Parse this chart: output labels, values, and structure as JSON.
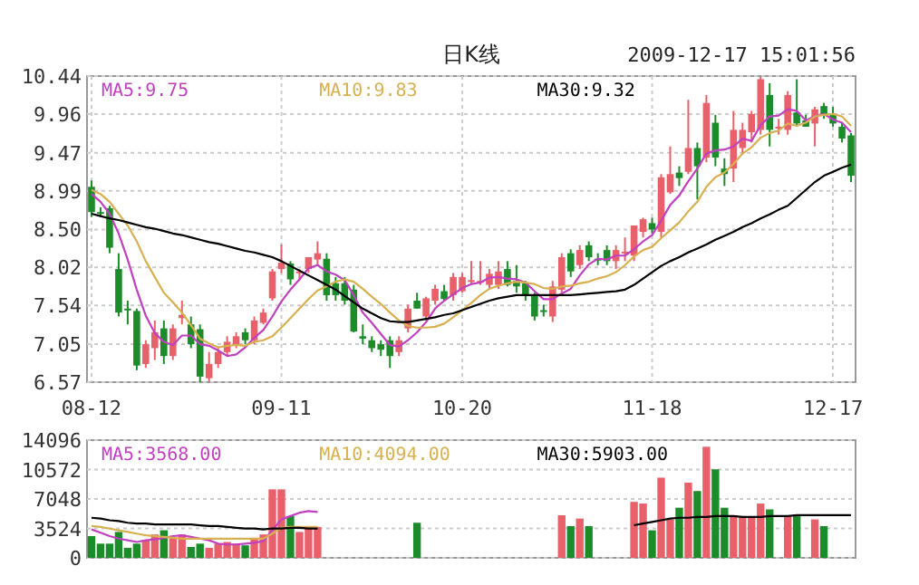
{
  "chart_data": [
    {
      "type": "candlestick",
      "title": "日K线",
      "annotations": [
        "2009-12-17 15:01:56"
      ],
      "categories": [
        "08-12",
        null,
        null,
        null,
        null,
        null,
        null,
        null,
        null,
        null,
        null,
        null,
        null,
        null,
        null,
        null,
        null,
        null,
        null,
        null,
        null,
        "09-11",
        null,
        null,
        null,
        null,
        null,
        null,
        null,
        null,
        null,
        null,
        null,
        null,
        null,
        null,
        null,
        null,
        null,
        null,
        null,
        "10-20",
        null,
        null,
        null,
        null,
        null,
        null,
        null,
        null,
        null,
        null,
        null,
        null,
        null,
        null,
        null,
        null,
        null,
        null,
        null,
        null,
        "11-18",
        null,
        null,
        null,
        null,
        null,
        null,
        null,
        null,
        null,
        null,
        null,
        null,
        null,
        null,
        null,
        null,
        null,
        null,
        null,
        "12-17",
        null,
        null
      ],
      "ohlc": [
        [
          9.04,
          9.12,
          8.66,
          8.72
        ],
        [
          8.72,
          8.78,
          8.66,
          8.7
        ],
        [
          8.77,
          8.8,
          8.2,
          8.27
        ],
        [
          8.0,
          8.2,
          7.4,
          7.45
        ],
        [
          7.5,
          7.6,
          7.3,
          7.48
        ],
        [
          7.47,
          7.5,
          6.72,
          6.78
        ],
        [
          6.8,
          7.1,
          6.75,
          7.05
        ],
        [
          7.0,
          7.35,
          6.85,
          7.2
        ],
        [
          7.25,
          7.35,
          6.8,
          6.9
        ],
        [
          6.9,
          7.3,
          6.85,
          7.25
        ],
        [
          7.38,
          7.6,
          7.3,
          7.42
        ],
        [
          7.3,
          7.4,
          7.0,
          7.05
        ],
        [
          7.24,
          7.3,
          6.57,
          6.64
        ],
        [
          6.62,
          6.95,
          6.58,
          6.8
        ],
        [
          6.8,
          7.0,
          6.75,
          6.95
        ],
        [
          6.95,
          7.15,
          6.9,
          7.08
        ],
        [
          7.05,
          7.2,
          7.0,
          7.15
        ],
        [
          7.2,
          7.25,
          7.05,
          7.1
        ],
        [
          7.1,
          7.4,
          7.05,
          7.35
        ],
        [
          7.32,
          7.5,
          7.3,
          7.45
        ],
        [
          7.63,
          8.0,
          7.6,
          7.97
        ],
        [
          8.0,
          8.31,
          7.95,
          8.08
        ],
        [
          8.07,
          8.1,
          7.8,
          7.87
        ],
        [
          7.95,
          8.0,
          7.85,
          7.97
        ],
        [
          8.0,
          8.15,
          7.95,
          8.15
        ],
        [
          8.12,
          8.35,
          8.05,
          8.2
        ],
        [
          8.13,
          8.2,
          7.6,
          7.67
        ],
        [
          7.82,
          7.9,
          7.6,
          7.67
        ],
        [
          7.82,
          7.9,
          7.55,
          7.6
        ],
        [
          7.74,
          7.8,
          7.2,
          7.21
        ],
        [
          7.15,
          7.3,
          7.05,
          7.12
        ],
        [
          7.1,
          7.15,
          6.95,
          7.0
        ],
        [
          7.05,
          7.1,
          6.9,
          6.98
        ],
        [
          7.1,
          7.15,
          6.75,
          6.9
        ],
        [
          6.95,
          7.15,
          6.9,
          7.1
        ],
        [
          7.25,
          7.55,
          7.2,
          7.5
        ],
        [
          7.6,
          7.7,
          7.5,
          7.5
        ],
        [
          7.4,
          7.65,
          7.35,
          7.63
        ],
        [
          7.6,
          7.8,
          7.55,
          7.75
        ],
        [
          7.72,
          7.8,
          7.6,
          7.62
        ],
        [
          7.67,
          7.95,
          7.6,
          7.9
        ],
        [
          7.72,
          7.95,
          7.7,
          7.9
        ],
        [
          7.84,
          8.1,
          7.8,
          7.86
        ],
        [
          7.85,
          8.1,
          7.8,
          7.85
        ],
        [
          7.8,
          8.0,
          7.75,
          7.94
        ],
        [
          7.8,
          8.1,
          7.75,
          7.97
        ],
        [
          8.0,
          8.1,
          7.78,
          7.8
        ],
        [
          7.85,
          8.05,
          7.7,
          7.78
        ],
        [
          7.82,
          7.85,
          7.6,
          7.67
        ],
        [
          7.67,
          7.7,
          7.35,
          7.4
        ],
        [
          7.48,
          7.55,
          7.4,
          7.47
        ],
        [
          7.4,
          7.85,
          7.33,
          7.78
        ],
        [
          7.74,
          8.2,
          7.7,
          8.15
        ],
        [
          8.2,
          8.25,
          7.9,
          7.97
        ],
        [
          8.05,
          8.3,
          8.0,
          8.24
        ],
        [
          8.3,
          8.35,
          8.1,
          8.15
        ],
        [
          8.13,
          8.2,
          8.05,
          8.12
        ],
        [
          8.24,
          8.3,
          8.05,
          8.1
        ],
        [
          8.1,
          8.3,
          8.0,
          8.24
        ],
        [
          8.2,
          8.4,
          8.1,
          8.22
        ],
        [
          8.17,
          8.55,
          8.1,
          8.55
        ],
        [
          8.47,
          8.65,
          8.4,
          8.63
        ],
        [
          8.58,
          8.65,
          8.45,
          8.5
        ],
        [
          8.47,
          9.2,
          8.4,
          9.16
        ],
        [
          8.97,
          9.55,
          8.95,
          9.2
        ],
        [
          9.22,
          9.3,
          9.05,
          9.15
        ],
        [
          9.23,
          10.14,
          9.2,
          9.53
        ],
        [
          9.53,
          9.6,
          8.88,
          9.3
        ],
        [
          9.41,
          10.2,
          9.35,
          10.1
        ],
        [
          9.85,
          9.95,
          9.3,
          9.41
        ],
        [
          9.27,
          9.4,
          9.05,
          9.2
        ],
        [
          9.27,
          10.0,
          9.1,
          9.76
        ],
        [
          9.53,
          9.85,
          9.45,
          9.76
        ],
        [
          9.73,
          10.0,
          9.6,
          9.96
        ],
        [
          9.76,
          10.44,
          9.7,
          10.4
        ],
        [
          10.2,
          10.35,
          9.55,
          9.76
        ],
        [
          9.78,
          9.9,
          9.7,
          9.8
        ],
        [
          9.76,
          10.25,
          9.7,
          10.2
        ],
        [
          9.98,
          10.4,
          9.8,
          9.84
        ],
        [
          9.88,
          9.95,
          9.8,
          9.8
        ],
        [
          9.84,
          10.05,
          9.55,
          10.02
        ],
        [
          10.06,
          10.1,
          9.9,
          9.96
        ],
        [
          9.96,
          10.05,
          9.8,
          9.84
        ],
        [
          9.8,
          9.85,
          9.6,
          9.65
        ],
        [
          9.69,
          9.72,
          9.1,
          9.18
        ]
      ],
      "colors": [
        "#1c8c2a",
        "#1c8c2a",
        "#1c8c2a",
        "#1c8c2a",
        "#1c8c2a",
        "#1c8c2a",
        "#e8606a",
        "#e8606a",
        "#1c8c2a",
        "#e8606a",
        "#e8606a",
        "#1c8c2a",
        "#1c8c2a",
        "#e8606a",
        "#e8606a",
        "#e8606a",
        "#e8606a",
        "#1c8c2a",
        "#e8606a",
        "#e8606a",
        "#e8606a",
        "#e8606a",
        "#1c8c2a",
        "#e8606a",
        "#e8606a",
        "#e8606a",
        "#1c8c2a",
        "#1c8c2a",
        "#1c8c2a",
        "#1c8c2a",
        "#1c8c2a",
        "#1c8c2a",
        "#1c8c2a",
        "#1c8c2a",
        "#e8606a",
        "#e8606a",
        "#1c8c2a",
        "#e8606a",
        "#e8606a",
        "#1c8c2a",
        "#e8606a",
        "#e8606a",
        "#e8606a",
        "#e8606a",
        "#e8606a",
        "#e8606a",
        "#1c8c2a",
        "#1c8c2a",
        "#1c8c2a",
        "#1c8c2a",
        "#1c8c2a",
        "#e8606a",
        "#e8606a",
        "#1c8c2a",
        "#e8606a",
        "#1c8c2a",
        "#1c8c2a",
        "#1c8c2a",
        "#e8606a",
        "#e8606a",
        "#e8606a",
        "#e8606a",
        "#1c8c2a",
        "#e8606a",
        "#e8606a",
        "#1c8c2a",
        "#e8606a",
        "#1c8c2a",
        "#e8606a",
        "#1c8c2a",
        "#1c8c2a",
        "#e8606a",
        "#e8606a",
        "#e8606a",
        "#e8606a",
        "#1c8c2a",
        "#e8606a",
        "#e8606a",
        "#1c8c2a",
        "#1c8c2a",
        "#e8606a",
        "#1c8c2a",
        "#1c8c2a",
        "#1c8c2a",
        "#1c8c2a"
      ],
      "series": [
        {
          "name": "MA5:9.75",
          "type": "line",
          "color": "#c040c0",
          "values": [
            8.95,
            8.85,
            8.7,
            8.45,
            8.12,
            7.74,
            7.41,
            7.19,
            7.08,
            7.04,
            7.16,
            7.16,
            7.05,
            7.03,
            6.97,
            6.9,
            6.92,
            7.01,
            7.13,
            7.23,
            7.4,
            7.59,
            7.74,
            7.87,
            8.01,
            8.05,
            7.97,
            7.93,
            7.86,
            7.67,
            7.45,
            7.32,
            7.18,
            7.04,
            7.02,
            7.1,
            7.2,
            7.33,
            7.5,
            7.6,
            7.68,
            7.76,
            7.81,
            7.83,
            7.89,
            7.9,
            7.88,
            7.87,
            7.83,
            7.72,
            7.62,
            7.62,
            7.69,
            7.75,
            7.92,
            8.06,
            8.13,
            8.12,
            8.17,
            8.17,
            8.25,
            8.35,
            8.43,
            8.61,
            8.81,
            8.93,
            9.11,
            9.27,
            9.46,
            9.5,
            9.51,
            9.55,
            9.65,
            9.62,
            9.82,
            9.93,
            9.94,
            10.02,
            10.0,
            9.88,
            9.93,
            9.96,
            9.89,
            9.85,
            9.73
          ]
        },
        {
          "name": "MA10:9.83",
          "type": "line",
          "color": "#d8b050",
          "values": [
            9.0,
            8.95,
            8.85,
            8.7,
            8.55,
            8.35,
            8.1,
            7.9,
            7.7,
            7.58,
            7.45,
            7.29,
            7.12,
            7.06,
            7.01,
            7.03,
            7.04,
            7.03,
            7.08,
            7.1,
            7.15,
            7.26,
            7.38,
            7.5,
            7.62,
            7.73,
            7.78,
            7.84,
            7.87,
            7.84,
            7.75,
            7.65,
            7.56,
            7.45,
            7.35,
            7.28,
            7.26,
            7.26,
            7.27,
            7.31,
            7.39,
            7.48,
            7.57,
            7.67,
            7.75,
            7.79,
            7.82,
            7.84,
            7.83,
            7.81,
            7.76,
            7.75,
            7.78,
            7.79,
            7.82,
            7.84,
            7.88,
            7.91,
            7.96,
            8.05,
            8.16,
            8.24,
            8.28,
            8.39,
            8.49,
            8.59,
            8.73,
            8.85,
            9.04,
            9.16,
            9.22,
            9.33,
            9.46,
            9.54,
            9.66,
            9.72,
            9.75,
            9.84,
            9.81,
            9.85,
            9.93,
            9.95,
            9.96,
            9.93,
            9.81
          ]
        },
        {
          "name": "MA30:9.32",
          "type": "line",
          "color": "#000000",
          "values": [
            8.7,
            8.67,
            8.64,
            8.62,
            8.59,
            8.56,
            8.53,
            8.51,
            8.48,
            8.45,
            8.43,
            8.4,
            8.37,
            8.34,
            8.32,
            8.29,
            8.26,
            8.23,
            8.21,
            8.18,
            8.15,
            8.1,
            8.04,
            7.98,
            7.92,
            7.86,
            7.8,
            7.74,
            7.66,
            7.58,
            7.5,
            7.44,
            7.38,
            7.34,
            7.33,
            7.33,
            7.35,
            7.37,
            7.39,
            7.42,
            7.44,
            7.48,
            7.52,
            7.56,
            7.6,
            7.63,
            7.65,
            7.67,
            7.67,
            7.67,
            7.67,
            7.67,
            7.67,
            7.67,
            7.68,
            7.69,
            7.7,
            7.71,
            7.72,
            7.74,
            7.8,
            7.88,
            7.96,
            8.04,
            8.1,
            8.15,
            8.21,
            8.26,
            8.31,
            8.37,
            8.42,
            8.47,
            8.53,
            8.58,
            8.64,
            8.69,
            8.75,
            8.8,
            8.9,
            9.0,
            9.1,
            9.18,
            9.23,
            9.28,
            9.32
          ]
        }
      ],
      "ylim": [
        6.57,
        10.44
      ],
      "yticks": [
        10.44,
        9.96,
        9.47,
        8.99,
        {
          "value": 8.5,
          "label": "8.50"
        },
        8.02,
        7.54,
        7.05,
        6.57
      ],
      "grid": true,
      "legend": "top"
    },
    {
      "type": "bar",
      "tick_labels": "y",
      "categories": [
        null,
        null,
        null,
        null,
        null,
        null,
        null,
        null,
        null,
        null,
        null,
        null,
        null,
        null,
        null,
        null,
        null,
        null,
        null,
        null,
        null,
        null,
        null,
        null,
        null,
        null,
        null,
        null,
        null,
        null,
        null,
        null,
        null,
        null,
        null,
        null,
        null,
        null,
        null,
        null,
        null,
        null,
        null,
        null,
        null,
        null,
        null,
        null,
        null,
        null,
        null,
        null,
        null,
        null,
        null,
        null,
        null,
        null,
        null,
        null,
        null,
        null,
        null,
        null,
        null,
        null,
        null,
        null,
        null,
        null,
        null,
        null,
        null,
        null,
        null,
        null,
        null,
        null,
        null,
        null,
        null,
        null,
        null,
        null,
        null
      ],
      "values": [
        2600,
        1700,
        1700,
        3100,
        1200,
        1700,
        2100,
        2800,
        3300,
        2400,
        2800,
        1300,
        1700,
        1200,
        1700,
        1900,
        1700,
        1500,
        2400,
        2800,
        8200,
        8200,
        5000,
        3100,
        3500,
        3700,
        null,
        null,
        null,
        null,
        null,
        null,
        null,
        null,
        null,
        null,
        4200,
        null,
        null,
        null,
        null,
        null,
        null,
        null,
        null,
        null,
        null,
        null,
        null,
        null,
        null,
        null,
        5100,
        3800,
        4700,
        3800,
        null,
        null,
        null,
        null,
        6700,
        6500,
        3300,
        9600,
        4600,
        6000,
        9000,
        8000,
        13300,
        10600,
        6000,
        5100,
        5000,
        4800,
        6500,
        5800,
        null,
        5000,
        5000,
        null,
        4600,
        3800,
        null,
        null,
        null
      ],
      "colors": [
        "#1c8c2a",
        "#1c8c2a",
        "#1c8c2a",
        "#1c8c2a",
        "#1c8c2a",
        "#1c8c2a",
        "#e8606a",
        "#e8606a",
        "#1c8c2a",
        "#e8606a",
        "#e8606a",
        "#1c8c2a",
        "#1c8c2a",
        "#e8606a",
        "#e8606a",
        "#e8606a",
        "#e8606a",
        "#1c8c2a",
        "#e8606a",
        "#e8606a",
        "#e8606a",
        "#e8606a",
        "#1c8c2a",
        "#e8606a",
        "#e8606a",
        "#e8606a",
        null,
        null,
        null,
        null,
        null,
        null,
        null,
        null,
        null,
        null,
        "#1c8c2a",
        null,
        null,
        null,
        null,
        null,
        null,
        null,
        null,
        null,
        null,
        null,
        null,
        null,
        null,
        null,
        "#e8606a",
        "#1c8c2a",
        "#e8606a",
        "#1c8c2a",
        null,
        null,
        null,
        null,
        "#e8606a",
        "#e8606a",
        "#1c8c2a",
        "#e8606a",
        "#e8606a",
        "#1c8c2a",
        "#e8606a",
        "#1c8c2a",
        "#e8606a",
        "#1c8c2a",
        "#1c8c2a",
        "#e8606a",
        "#e8606a",
        "#e8606a",
        "#e8606a",
        "#1c8c2a",
        null,
        "#e8606a",
        "#1c8c2a",
        null,
        "#e8606a",
        "#1c8c2a",
        null,
        null,
        null
      ],
      "series": [
        {
          "name": "MA5:3568.00",
          "type": "line",
          "color": "#c040c0",
          "values": [
            3400,
            3000,
            2600,
            2300,
            2100,
            1900,
            2100,
            2200,
            2400,
            2600,
            2700,
            2500,
            2300,
            2100,
            1700,
            1600,
            1600,
            1700,
            1800,
            2000,
            3300,
            4600,
            5000,
            5400,
            5600,
            5500,
            null,
            null,
            null,
            null,
            null,
            null,
            null,
            null,
            null,
            null,
            null,
            null,
            null,
            null,
            null,
            null,
            null,
            null,
            null,
            null,
            null,
            null,
            null,
            null,
            null,
            null,
            null,
            null,
            null,
            null,
            null,
            null,
            null,
            null,
            null,
            null,
            null,
            null,
            null,
            null,
            null,
            null,
            null,
            null,
            null,
            null,
            null,
            null,
            null,
            null,
            null,
            null,
            null,
            null,
            null,
            null,
            null,
            null,
            null
          ]
        },
        {
          "name": "MA10:4094.00",
          "type": "line",
          "color": "#d8b050",
          "values": [
            3800,
            3700,
            3500,
            3300,
            3100,
            2900,
            2700,
            2600,
            2500,
            2400,
            2300,
            2300,
            2300,
            2300,
            2300,
            2300,
            2300,
            2300,
            2300,
            2300,
            2900,
            3600,
            3700,
            3700,
            3700,
            3700,
            null,
            null,
            null,
            null,
            null,
            null,
            null,
            null,
            null,
            null,
            null,
            null,
            null,
            null,
            null,
            null,
            null,
            null,
            null,
            null,
            null,
            null,
            null,
            null,
            null,
            null,
            null,
            null,
            null,
            null,
            null,
            null,
            null,
            null,
            null,
            null,
            null,
            null,
            null,
            null,
            null,
            null,
            null,
            null,
            null,
            null,
            null,
            null,
            null,
            null,
            null,
            null,
            null,
            null,
            null,
            null,
            null,
            null,
            null
          ]
        },
        {
          "name": "MA30:5903.00",
          "type": "line",
          "color": "#000000",
          "values": [
            4800,
            4700,
            4500,
            4400,
            4200,
            4100,
            4100,
            4000,
            4000,
            4000,
            4000,
            4000,
            3900,
            3800,
            3800,
            3700,
            3600,
            3500,
            3500,
            3400,
            3500,
            3500,
            3600,
            3600,
            3500,
            3500,
            null,
            null,
            null,
            null,
            null,
            null,
            null,
            null,
            null,
            null,
            null,
            null,
            null,
            null,
            null,
            null,
            null,
            null,
            null,
            null,
            null,
            null,
            null,
            null,
            null,
            null,
            null,
            null,
            null,
            null,
            null,
            null,
            null,
            null,
            3900,
            4100,
            4300,
            4500,
            4700,
            4800,
            4800,
            4900,
            4900,
            5000,
            5000,
            5000,
            4900,
            4900,
            4900,
            5000,
            5000,
            5000,
            5100,
            5100,
            5100,
            5100,
            5100,
            5100,
            5100
          ]
        }
      ],
      "ylim": [
        0,
        14096
      ],
      "yticks": [
        14096,
        10572,
        7048,
        3524,
        0
      ],
      "grid": true,
      "legend": "top"
    }
  ]
}
